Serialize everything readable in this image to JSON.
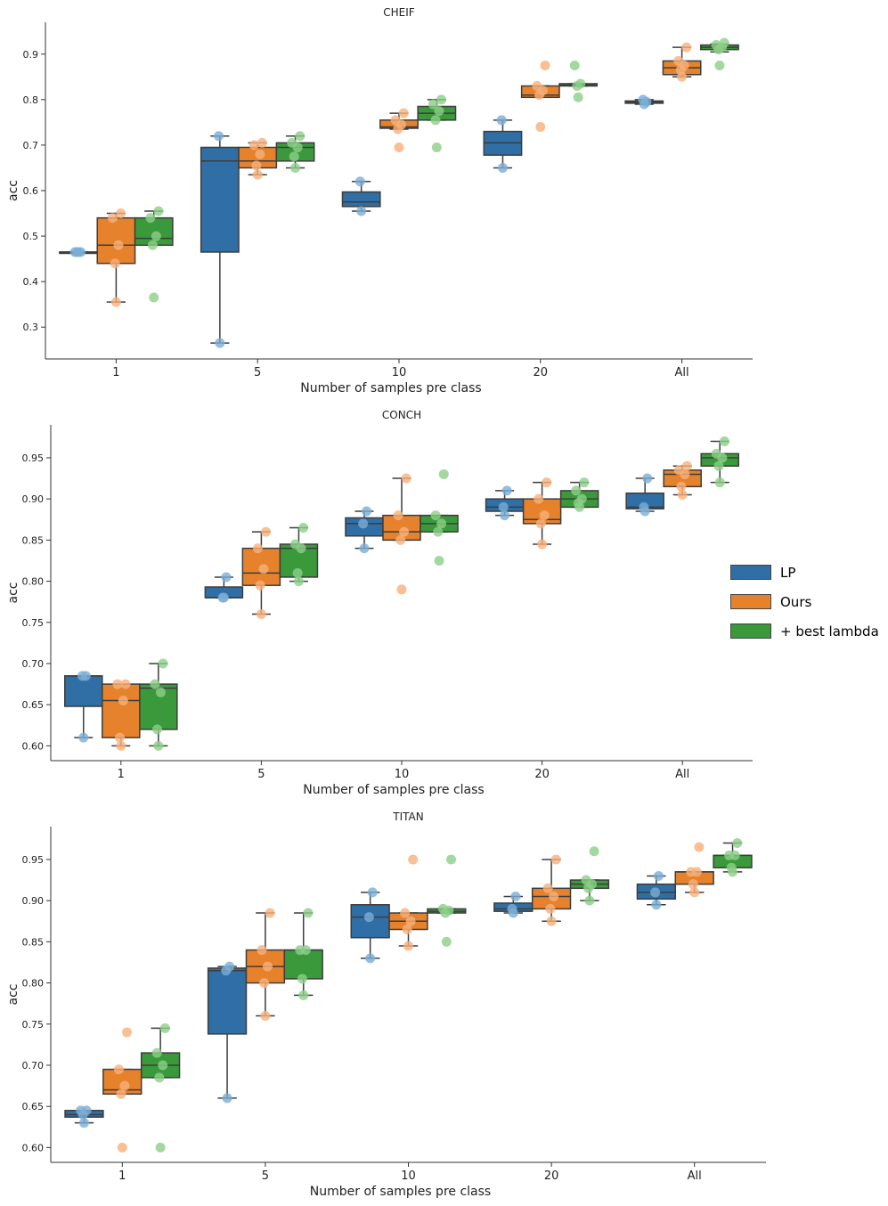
{
  "colors": {
    "LP": "#2f6fa6",
    "Ours": "#e6822c",
    "best": "#3a9a3b",
    "LP_pt": "#7aaed6",
    "Ours_pt": "#f7b07a",
    "best_pt": "#8ccf88"
  },
  "legend": [
    {
      "name": "LP",
      "color": "#2f6fa6"
    },
    {
      "name": "Ours",
      "color": "#e6822c"
    },
    {
      "name": "+ best lambda",
      "color": "#3a9a3b"
    }
  ],
  "chart_data": [
    {
      "type": "box",
      "title": "CHEIF",
      "xlabel": "Number of samples pre class",
      "ylabel": "acc",
      "categories": [
        "1",
        "5",
        "10",
        "20",
        "All"
      ],
      "ylim": [
        0.23,
        0.97
      ],
      "yticks": [
        0.3,
        0.4,
        0.5,
        0.6,
        0.7,
        0.8,
        0.9
      ],
      "ytick_labels": [
        "0.3",
        "0.4",
        "0.5",
        "0.6",
        "0.7",
        "0.8",
        "0.9"
      ],
      "series": [
        {
          "name": "LP",
          "boxes": [
            {
              "wl": 0.465,
              "q1": 0.465,
              "med": 0.465,
              "q3": 0.465,
              "wh": 0.465,
              "pts": [
                0.465,
                0.465,
                0.465,
                0.465
              ]
            },
            {
              "wl": 0.265,
              "q1": 0.465,
              "med": 0.665,
              "q3": 0.695,
              "wh": 0.72,
              "pts": [
                0.265,
                0.72
              ]
            },
            {
              "wl": 0.555,
              "q1": 0.565,
              "med": 0.575,
              "q3": 0.597,
              "wh": 0.62,
              "pts": [
                0.555,
                0.62
              ]
            },
            {
              "wl": 0.65,
              "q1": 0.678,
              "med": 0.705,
              "q3": 0.73,
              "wh": 0.755,
              "pts": [
                0.65,
                0.755
              ]
            },
            {
              "wl": 0.79,
              "q1": 0.792,
              "med": 0.795,
              "q3": 0.797,
              "wh": 0.8,
              "pts": [
                0.79,
                0.8,
                0.795
              ]
            }
          ]
        },
        {
          "name": "Ours",
          "boxes": [
            {
              "wl": 0.355,
              "q1": 0.44,
              "med": 0.48,
              "q3": 0.54,
              "wh": 0.55,
              "pts": [
                0.355,
                0.44,
                0.48,
                0.54,
                0.55
              ]
            },
            {
              "wl": 0.635,
              "q1": 0.65,
              "med": 0.665,
              "q3": 0.695,
              "wh": 0.705,
              "pts": [
                0.635,
                0.655,
                0.68,
                0.7,
                0.705
              ]
            },
            {
              "wl": 0.735,
              "q1": 0.737,
              "med": 0.74,
              "q3": 0.755,
              "wh": 0.77,
              "pts": [
                0.695,
                0.735,
                0.745,
                0.755,
                0.77
              ]
            },
            {
              "wl": 0.805,
              "q1": 0.805,
              "med": 0.81,
              "q3": 0.83,
              "wh": 0.83,
              "pts": [
                0.74,
                0.81,
                0.82,
                0.83,
                0.875
              ]
            },
            {
              "wl": 0.85,
              "q1": 0.855,
              "med": 0.87,
              "q3": 0.885,
              "wh": 0.915,
              "pts": [
                0.85,
                0.865,
                0.875,
                0.885,
                0.915
              ]
            }
          ]
        },
        {
          "name": "+ best lambda",
          "boxes": [
            {
              "wl": 0.48,
              "q1": 0.48,
              "med": 0.495,
              "q3": 0.54,
              "wh": 0.555,
              "pts": [
                0.365,
                0.48,
                0.5,
                0.54,
                0.555
              ]
            },
            {
              "wl": 0.65,
              "q1": 0.665,
              "med": 0.695,
              "q3": 0.705,
              "wh": 0.72,
              "pts": [
                0.65,
                0.675,
                0.695,
                0.705,
                0.72
              ]
            },
            {
              "wl": 0.755,
              "q1": 0.755,
              "med": 0.77,
              "q3": 0.785,
              "wh": 0.8,
              "pts": [
                0.695,
                0.755,
                0.775,
                0.79,
                0.8
              ]
            },
            {
              "wl": 0.83,
              "q1": 0.83,
              "med": 0.832,
              "q3": 0.835,
              "wh": 0.835,
              "pts": [
                0.805,
                0.83,
                0.835,
                0.875
              ]
            },
            {
              "wl": 0.905,
              "q1": 0.91,
              "med": 0.915,
              "q3": 0.92,
              "wh": 0.922,
              "pts": [
                0.875,
                0.91,
                0.915,
                0.92,
                0.925
              ]
            }
          ]
        }
      ]
    },
    {
      "type": "box",
      "title": "CONCH",
      "xlabel": "Number of samples pre class",
      "ylabel": "acc",
      "categories": [
        "1",
        "5",
        "10",
        "20",
        "All"
      ],
      "ylim": [
        0.582,
        0.99
      ],
      "yticks": [
        0.6,
        0.65,
        0.7,
        0.75,
        0.8,
        0.85,
        0.9,
        0.95
      ],
      "ytick_labels": [
        "0.60",
        "0.65",
        "0.70",
        "0.75",
        "0.80",
        "0.85",
        "0.90",
        "0.95"
      ],
      "series": [
        {
          "name": "LP",
          "boxes": [
            {
              "wl": 0.61,
              "q1": 0.648,
              "med": 0.685,
              "q3": 0.685,
              "wh": 0.685,
              "pts": [
                0.61,
                0.685,
                0.685
              ]
            },
            {
              "wl": 0.78,
              "q1": 0.78,
              "med": 0.78,
              "q3": 0.793,
              "wh": 0.805,
              "pts": [
                0.78,
                0.78,
                0.805
              ]
            },
            {
              "wl": 0.84,
              "q1": 0.855,
              "med": 0.87,
              "q3": 0.877,
              "wh": 0.885,
              "pts": [
                0.84,
                0.87,
                0.885
              ]
            },
            {
              "wl": 0.88,
              "q1": 0.885,
              "med": 0.89,
              "q3": 0.9,
              "wh": 0.91,
              "pts": [
                0.88,
                0.89,
                0.91
              ]
            },
            {
              "wl": 0.885,
              "q1": 0.888,
              "med": 0.89,
              "q3": 0.907,
              "wh": 0.925,
              "pts": [
                0.885,
                0.89,
                0.925
              ]
            }
          ]
        },
        {
          "name": "Ours",
          "boxes": [
            {
              "wl": 0.6,
              "q1": 0.61,
              "med": 0.655,
              "q3": 0.675,
              "wh": 0.675,
              "pts": [
                0.6,
                0.61,
                0.655,
                0.675,
                0.675
              ]
            },
            {
              "wl": 0.76,
              "q1": 0.795,
              "med": 0.81,
              "q3": 0.84,
              "wh": 0.86,
              "pts": [
                0.76,
                0.795,
                0.815,
                0.84,
                0.86
              ]
            },
            {
              "wl": 0.85,
              "q1": 0.85,
              "med": 0.86,
              "q3": 0.88,
              "wh": 0.925,
              "pts": [
                0.79,
                0.85,
                0.86,
                0.88,
                0.925
              ]
            },
            {
              "wl": 0.845,
              "q1": 0.87,
              "med": 0.875,
              "q3": 0.9,
              "wh": 0.92,
              "pts": [
                0.845,
                0.87,
                0.88,
                0.9,
                0.92
              ]
            },
            {
              "wl": 0.905,
              "q1": 0.915,
              "med": 0.93,
              "q3": 0.935,
              "wh": 0.94,
              "pts": [
                0.905,
                0.915,
                0.93,
                0.935,
                0.94
              ]
            }
          ]
        },
        {
          "name": "+ best lambda",
          "boxes": [
            {
              "wl": 0.6,
              "q1": 0.62,
              "med": 0.67,
              "q3": 0.675,
              "wh": 0.7,
              "pts": [
                0.6,
                0.62,
                0.665,
                0.675,
                0.7
              ]
            },
            {
              "wl": 0.8,
              "q1": 0.805,
              "med": 0.84,
              "q3": 0.845,
              "wh": 0.865,
              "pts": [
                0.8,
                0.81,
                0.84,
                0.845,
                0.865
              ]
            },
            {
              "wl": 0.86,
              "q1": 0.86,
              "med": 0.87,
              "q3": 0.88,
              "wh": 0.88,
              "pts": [
                0.825,
                0.86,
                0.87,
                0.88,
                0.93
              ]
            },
            {
              "wl": 0.89,
              "q1": 0.89,
              "med": 0.9,
              "q3": 0.91,
              "wh": 0.92,
              "pts": [
                0.89,
                0.895,
                0.9,
                0.91,
                0.92
              ]
            },
            {
              "wl": 0.92,
              "q1": 0.94,
              "med": 0.95,
              "q3": 0.955,
              "wh": 0.97,
              "pts": [
                0.92,
                0.94,
                0.95,
                0.955,
                0.97
              ]
            }
          ]
        }
      ]
    },
    {
      "type": "box",
      "title": "TITAN",
      "xlabel": "Number of samples pre class",
      "ylabel": "acc",
      "categories": [
        "1",
        "5",
        "10",
        "20",
        "All"
      ],
      "ylim": [
        0.582,
        0.99
      ],
      "yticks": [
        0.6,
        0.65,
        0.7,
        0.75,
        0.8,
        0.85,
        0.9,
        0.95
      ],
      "ytick_labels": [
        "0.60",
        "0.65",
        "0.70",
        "0.75",
        "0.80",
        "0.85",
        "0.90",
        "0.95"
      ],
      "series": [
        {
          "name": "LP",
          "boxes": [
            {
              "wl": 0.63,
              "q1": 0.637,
              "med": 0.64,
              "q3": 0.645,
              "wh": 0.645,
              "pts": [
                0.63,
                0.64,
                0.645,
                0.645
              ]
            },
            {
              "wl": 0.66,
              "q1": 0.738,
              "med": 0.815,
              "q3": 0.818,
              "wh": 0.82,
              "pts": [
                0.66,
                0.815,
                0.82
              ]
            },
            {
              "wl": 0.83,
              "q1": 0.855,
              "med": 0.88,
              "q3": 0.895,
              "wh": 0.91,
              "pts": [
                0.83,
                0.88,
                0.91
              ]
            },
            {
              "wl": 0.885,
              "q1": 0.887,
              "med": 0.89,
              "q3": 0.897,
              "wh": 0.905,
              "pts": [
                0.885,
                0.89,
                0.905
              ]
            },
            {
              "wl": 0.895,
              "q1": 0.902,
              "med": 0.91,
              "q3": 0.92,
              "wh": 0.93,
              "pts": [
                0.895,
                0.91,
                0.93
              ]
            }
          ]
        },
        {
          "name": "Ours",
          "boxes": [
            {
              "wl": 0.665,
              "q1": 0.665,
              "med": 0.67,
              "q3": 0.695,
              "wh": 0.695,
              "pts": [
                0.6,
                0.665,
                0.675,
                0.695,
                0.74
              ]
            },
            {
              "wl": 0.76,
              "q1": 0.8,
              "med": 0.82,
              "q3": 0.84,
              "wh": 0.885,
              "pts": [
                0.76,
                0.8,
                0.82,
                0.84,
                0.885
              ]
            },
            {
              "wl": 0.845,
              "q1": 0.865,
              "med": 0.875,
              "q3": 0.885,
              "wh": 0.885,
              "pts": [
                0.845,
                0.865,
                0.875,
                0.885,
                0.95
              ]
            },
            {
              "wl": 0.875,
              "q1": 0.89,
              "med": 0.905,
              "q3": 0.915,
              "wh": 0.95,
              "pts": [
                0.875,
                0.89,
                0.905,
                0.915,
                0.95
              ]
            },
            {
              "wl": 0.91,
              "q1": 0.92,
              "med": 0.935,
              "q3": 0.935,
              "wh": 0.935,
              "pts": [
                0.91,
                0.92,
                0.935,
                0.935,
                0.965
              ]
            }
          ]
        },
        {
          "name": "+ best lambda",
          "boxes": [
            {
              "wl": 0.685,
              "q1": 0.685,
              "med": 0.7,
              "q3": 0.715,
              "wh": 0.745,
              "pts": [
                0.6,
                0.685,
                0.7,
                0.715,
                0.745
              ]
            },
            {
              "wl": 0.785,
              "q1": 0.805,
              "med": 0.84,
              "q3": 0.84,
              "wh": 0.885,
              "pts": [
                0.785,
                0.805,
                0.84,
                0.84,
                0.885
              ]
            },
            {
              "wl": 0.885,
              "q1": 0.885,
              "med": 0.887,
              "q3": 0.89,
              "wh": 0.89,
              "pts": [
                0.85,
                0.885,
                0.888,
                0.89,
                0.95
              ]
            },
            {
              "wl": 0.9,
              "q1": 0.915,
              "med": 0.92,
              "q3": 0.925,
              "wh": 0.925,
              "pts": [
                0.9,
                0.915,
                0.92,
                0.925,
                0.96
              ]
            },
            {
              "wl": 0.935,
              "q1": 0.94,
              "med": 0.955,
              "q3": 0.955,
              "wh": 0.97,
              "pts": [
                0.935,
                0.94,
                0.955,
                0.955,
                0.97
              ]
            }
          ]
        }
      ]
    }
  ]
}
